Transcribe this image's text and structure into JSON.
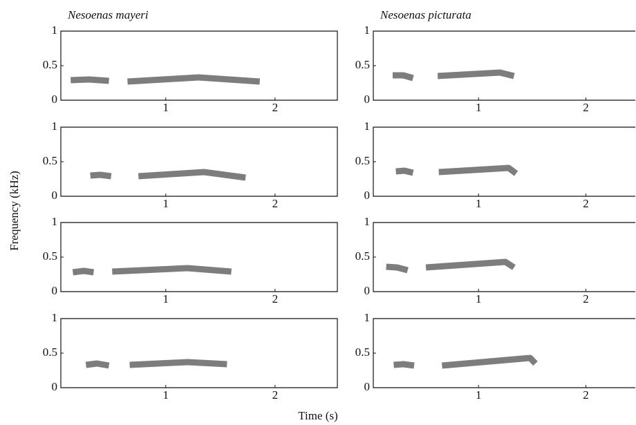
{
  "ylabel": "Frequency (kHz)",
  "xlabel": "Time (s)",
  "chart_data": [
    {
      "type": "spectrogram",
      "title": "Nesoenas mayeri",
      "color": "#6f6f6f",
      "xlim": [
        0.04,
        2.57
      ],
      "ylim": [
        0,
        1
      ],
      "xticks": [
        1,
        2
      ],
      "yticks": [
        0,
        0.5,
        1
      ],
      "series": [
        {
          "x": [
            0.13,
            0.3,
            0.48
          ],
          "values": [
            0.29,
            0.3,
            0.28
          ]
        },
        {
          "x": [
            0.65,
            1.3,
            1.86
          ],
          "values": [
            0.27,
            0.33,
            0.27
          ]
        }
      ]
    },
    {
      "type": "spectrogram",
      "color": "#6f6f6f",
      "xlim": [
        0.04,
        2.57
      ],
      "ylim": [
        0,
        1
      ],
      "xticks": [
        1,
        2
      ],
      "yticks": [
        0,
        0.5,
        1
      ],
      "series": [
        {
          "x": [
            0.31,
            0.4,
            0.5
          ],
          "values": [
            0.3,
            0.31,
            0.29
          ]
        },
        {
          "x": [
            0.75,
            1.35,
            1.73
          ],
          "values": [
            0.29,
            0.35,
            0.27
          ]
        }
      ]
    },
    {
      "type": "spectrogram",
      "color": "#6f6f6f",
      "xlim": [
        0.04,
        2.57
      ],
      "ylim": [
        0,
        1
      ],
      "xticks": [
        1,
        2
      ],
      "yticks": [
        0,
        0.5,
        1
      ],
      "series": [
        {
          "x": [
            0.15,
            0.25,
            0.34
          ],
          "values": [
            0.28,
            0.3,
            0.28
          ]
        },
        {
          "x": [
            0.51,
            1.2,
            1.6
          ],
          "values": [
            0.29,
            0.34,
            0.29
          ]
        }
      ]
    },
    {
      "type": "spectrogram",
      "color": "#6f6f6f",
      "xlim": [
        0.04,
        2.57
      ],
      "ylim": [
        0,
        1
      ],
      "xticks": [
        1,
        2
      ],
      "yticks": [
        0,
        0.5,
        1
      ],
      "series": [
        {
          "x": [
            0.27,
            0.37,
            0.48
          ],
          "values": [
            0.33,
            0.35,
            0.32
          ]
        },
        {
          "x": [
            0.67,
            1.2,
            1.56
          ],
          "values": [
            0.33,
            0.37,
            0.34
          ]
        }
      ]
    },
    {
      "type": "spectrogram",
      "title": "Nesoenas picturata",
      "color": "#6f6f6f",
      "xlim": [
        0.02,
        2.46
      ],
      "ylim": [
        0,
        1
      ],
      "xticks": [
        1,
        2
      ],
      "yticks": [
        0,
        0.5,
        1
      ],
      "series": [
        {
          "x": [
            0.2,
            0.3,
            0.39
          ],
          "values": [
            0.36,
            0.36,
            0.32
          ]
        },
        {
          "x": [
            0.62,
            1.2,
            1.33
          ],
          "values": [
            0.35,
            0.4,
            0.35
          ]
        }
      ]
    },
    {
      "type": "spectrogram",
      "color": "#6f6f6f",
      "xlim": [
        0.02,
        2.46
      ],
      "ylim": [
        0,
        1
      ],
      "xticks": [
        1,
        2
      ],
      "yticks": [
        0,
        0.5,
        1
      ],
      "series": [
        {
          "x": [
            0.23,
            0.31,
            0.39
          ],
          "values": [
            0.36,
            0.37,
            0.34
          ]
        },
        {
          "x": [
            0.63,
            1.28,
            1.35
          ],
          "values": [
            0.35,
            0.41,
            0.33
          ]
        }
      ]
    },
    {
      "type": "spectrogram",
      "color": "#6f6f6f",
      "xlim": [
        0.02,
        2.46
      ],
      "ylim": [
        0,
        1
      ],
      "xticks": [
        1,
        2
      ],
      "yticks": [
        0,
        0.5,
        1
      ],
      "series": [
        {
          "x": [
            0.14,
            0.24,
            0.34
          ],
          "values": [
            0.36,
            0.35,
            0.31
          ]
        },
        {
          "x": [
            0.51,
            1.25,
            1.33
          ],
          "values": [
            0.35,
            0.43,
            0.35
          ]
        }
      ]
    },
    {
      "type": "spectrogram",
      "color": "#6f6f6f",
      "xlim": [
        0.02,
        2.46
      ],
      "ylim": [
        0,
        1
      ],
      "xticks": [
        1,
        2
      ],
      "yticks": [
        0,
        0.5,
        1
      ],
      "series": [
        {
          "x": [
            0.21,
            0.3,
            0.4
          ],
          "values": [
            0.33,
            0.34,
            0.32
          ]
        },
        {
          "x": [
            0.66,
            1.48,
            1.53
          ],
          "values": [
            0.32,
            0.43,
            0.35
          ]
        }
      ]
    }
  ]
}
